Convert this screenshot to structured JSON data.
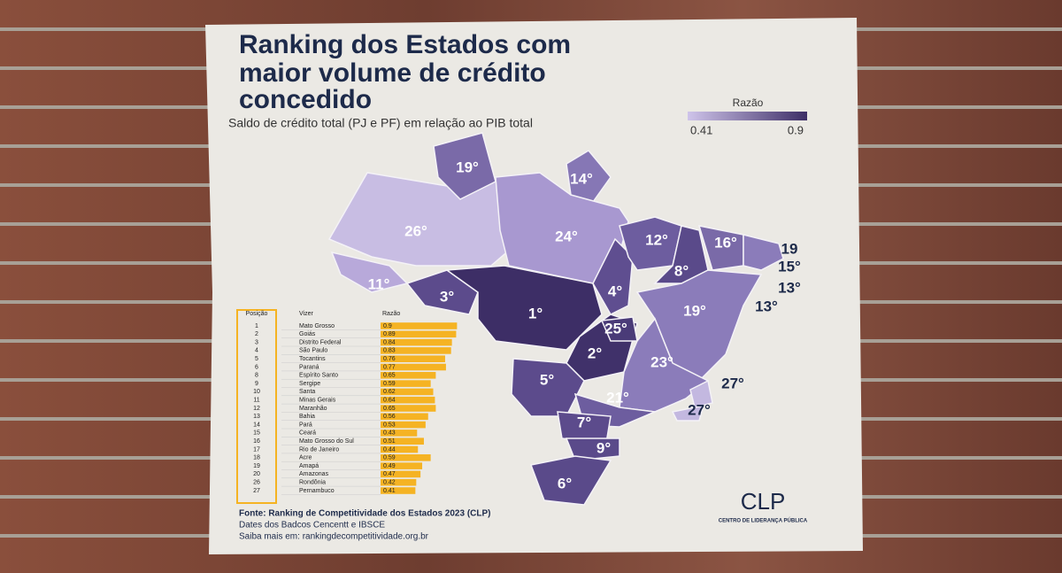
{
  "title_lines": [
    "Ranking dos Estados com",
    "maior volume de crédito",
    "concedido"
  ],
  "subtitle": "Saldo de crédito total (PJ e PF) em relação ao PIB total",
  "legend": {
    "title": "Razão",
    "min_label": "0.41",
    "max_label": "0.9"
  },
  "map_labels": [
    "19°",
    "14°",
    "26°",
    "24°",
    "12°",
    "16°",
    "19",
    "15°",
    "13°",
    "13°",
    "8°",
    "11°",
    "3°",
    "1°",
    "4°",
    "19°",
    "25°",
    "2°",
    "23°",
    "5°",
    "21°",
    "27°",
    "27°",
    "7°",
    "9°",
    "6°"
  ],
  "table": {
    "headers": [
      "Posição",
      "Vizer",
      "Razão"
    ],
    "rows": [
      [
        1,
        "Mato Grosso",
        0.9
      ],
      [
        2,
        "Goiás",
        0.89
      ],
      [
        3,
        "Distrito Federal",
        0.84
      ],
      [
        4,
        "São Paulo",
        0.83
      ],
      [
        5,
        "Tocantins",
        0.76
      ],
      [
        6,
        "Paraná",
        0.77
      ],
      [
        8,
        "Espírito Santo",
        0.65
      ],
      [
        9,
        "Sergipe",
        0.59
      ],
      [
        10,
        "Santa",
        0.62
      ],
      [
        11,
        "Minas Gerais",
        0.64
      ],
      [
        12,
        "Maranhão",
        0.65
      ],
      [
        13,
        "Bahia",
        0.56
      ],
      [
        14,
        "Pará",
        0.53
      ],
      [
        15,
        "Ceará",
        0.43
      ],
      [
        16,
        "Mato Grosso do Sul",
        0.51
      ],
      [
        17,
        "Rio de Janeiro",
        0.44
      ],
      [
        18,
        "Acre",
        0.59
      ],
      [
        19,
        "Amapá",
        0.49
      ],
      [
        20,
        "Amazonas",
        0.47
      ],
      [
        26,
        "Rondônia",
        0.42
      ],
      [
        27,
        "Pernambuco",
        0.41
      ]
    ]
  },
  "footer": [
    "Fonte: Ranking de Competitividade dos Estados 2023 (CLP)",
    "Dates dos Badcos Cencentt e IBSCE",
    "Saiba mais em: rankingdecompetitividade.org.br"
  ],
  "logo": {
    "name": "CLP",
    "tagline": "CENTRO DE LIDERANÇA PÚBLICA"
  }
}
